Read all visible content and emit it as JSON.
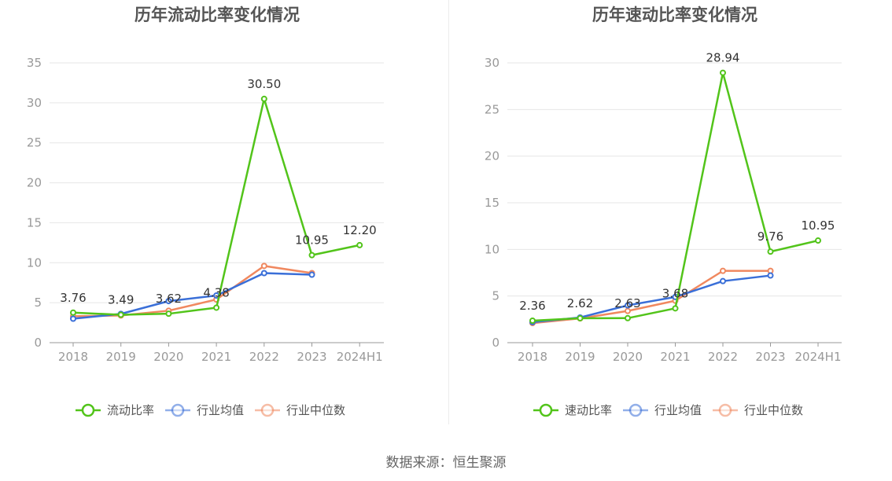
{
  "source_label": "数据来源：恒生聚源",
  "chart_data": [
    {
      "type": "line",
      "title": "历年流动比率变化情况",
      "categories": [
        "2018",
        "2019",
        "2020",
        "2021",
        "2022",
        "2023",
        "2024H1"
      ],
      "ylim": [
        0,
        35
      ],
      "yticks": [
        0,
        5,
        10,
        15,
        20,
        25,
        30,
        35
      ],
      "grid": true,
      "legend_position": "bottom",
      "series": [
        {
          "name": "流动比率",
          "color": "#52c41a",
          "values": [
            3.76,
            3.49,
            3.62,
            4.38,
            30.5,
            10.95,
            12.2
          ],
          "labels": [
            "3.76",
            "3.49",
            "3.62",
            "4.38",
            "30.50",
            "10.95",
            "12.20"
          ]
        },
        {
          "name": "行业均值",
          "color": "#3a6fd8",
          "values": [
            3.0,
            3.6,
            5.2,
            5.9,
            8.7,
            8.5,
            null
          ]
        },
        {
          "name": "行业中位数",
          "color": "#f0885f",
          "values": [
            3.3,
            3.4,
            4.0,
            5.4,
            9.6,
            8.7,
            null
          ]
        }
      ]
    },
    {
      "type": "line",
      "title": "历年速动比率变化情况",
      "categories": [
        "2018",
        "2019",
        "2020",
        "2021",
        "2022",
        "2023",
        "2024H1"
      ],
      "ylim": [
        0,
        30
      ],
      "yticks": [
        0,
        5,
        10,
        15,
        20,
        25,
        30
      ],
      "grid": true,
      "legend_position": "bottom",
      "series": [
        {
          "name": "速动比率",
          "color": "#52c41a",
          "values": [
            2.36,
            2.62,
            2.63,
            3.68,
            28.94,
            9.76,
            10.95
          ],
          "labels": [
            "2.36",
            "2.62",
            "2.63",
            "3.68",
            "28.94",
            "9.76",
            "10.95"
          ]
        },
        {
          "name": "行业均值",
          "color": "#3a6fd8",
          "values": [
            2.2,
            2.7,
            4.0,
            4.9,
            6.6,
            7.2,
            null
          ]
        },
        {
          "name": "行业中位数",
          "color": "#f0885f",
          "values": [
            2.1,
            2.6,
            3.4,
            4.5,
            7.7,
            7.7,
            null
          ]
        }
      ]
    }
  ]
}
